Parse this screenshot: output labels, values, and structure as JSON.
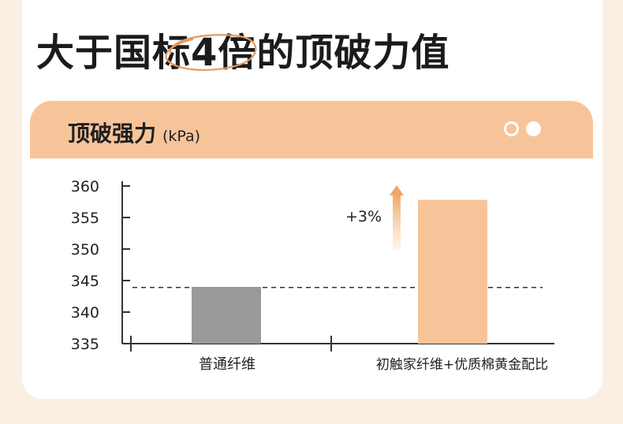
{
  "headline": "大于国标4倍的顶破力值",
  "panel": {
    "title": "顶破强力",
    "unit": "(kPa)"
  },
  "chart_data": {
    "type": "bar",
    "title": "顶破强力",
    "ylabel": "(kPa)",
    "categories": [
      "普通纤维",
      "初触家纤维+优质棉黄金配比"
    ],
    "values": [
      344,
      357.8
    ],
    "ylim": [
      335,
      360
    ],
    "yticks": [
      335,
      340,
      345,
      350,
      355,
      360
    ],
    "reference_line": 343.9,
    "annotation": "+3%",
    "colors": [
      "#9a9a9a",
      "#f7c49a"
    ],
    "grid": false
  }
}
